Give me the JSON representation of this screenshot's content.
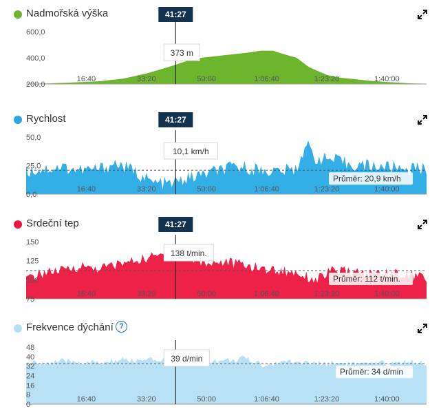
{
  "cursor_time": "41:27",
  "x_ticks": [
    "16:40",
    "33:20",
    "50:00",
    "1:06:40",
    "1:23:20",
    "1:40:00"
  ],
  "panels": [
    {
      "key": "elevation",
      "title": "Nadmořská výška",
      "color": "#6cb52d",
      "fill": "#6cb52d",
      "y_ticks": [
        "600,0",
        "400,0",
        "200,0"
      ],
      "tooltip": "373 m",
      "avg_label": "",
      "expand_icon": "expand-icon"
    },
    {
      "key": "speed",
      "title": "Rychlost",
      "color": "#29a8e0",
      "fill": "#33aee6",
      "y_ticks": [
        "50,0",
        "25,0",
        "0,0"
      ],
      "tooltip": "10,1 km/h",
      "avg_label": "Průměr: 20,9 km/h",
      "expand_icon": "expand-icon"
    },
    {
      "key": "heart",
      "title": "Srdeční tep",
      "color": "#e8173f",
      "fill": "#ee2148",
      "y_ticks": [
        "150",
        "125",
        "100",
        "75"
      ],
      "tooltip": "138 t/min.",
      "avg_label": "Průměr: 112 t/min.",
      "expand_icon": "expand-icon"
    },
    {
      "key": "breath",
      "title": "Frekvence dýchání",
      "color": "#b7dff3",
      "fill": "#b9e1f5",
      "y_ticks": [
        "48",
        "40",
        "32",
        "24",
        "16",
        "8",
        "0"
      ],
      "tooltip": "39 d/min",
      "avg_label": "Průměr: 34 d/min",
      "help_icon": "?",
      "expand_icon": "expand-icon"
    }
  ],
  "chart_data": [
    {
      "type": "area",
      "title": "Nadmořská výška",
      "unit": "m",
      "ylim": [
        200,
        600
      ],
      "x_axis": "elapsed time",
      "xlim_seconds": [
        0,
        6660
      ],
      "x_ticks": [
        "16:40",
        "33:20",
        "50:00",
        "1:06:40",
        "1:23:20",
        "1:40:00"
      ],
      "cursor": {
        "time": "41:27",
        "value": 373
      },
      "series": [
        {
          "x_seconds": [
            0,
            400,
            800,
            1200,
            1600,
            2000,
            2400,
            2700,
            2900,
            3100,
            3300,
            3500,
            3700,
            3900,
            4100,
            4200,
            4350,
            4500,
            4700,
            4900,
            5000,
            5200,
            5400,
            5600,
            5800,
            6000,
            6200,
            6400,
            6660
          ],
          "values": [
            200,
            205,
            212,
            220,
            240,
            280,
            335,
            380,
            400,
            410,
            420,
            430,
            440,
            455,
            455,
            440,
            420,
            400,
            330,
            290,
            270,
            250,
            240,
            230,
            222,
            215,
            210,
            205,
            202
          ]
        }
      ]
    },
    {
      "type": "area",
      "title": "Rychlost",
      "unit": "km/h",
      "ylim": [
        0,
        50
      ],
      "x_axis": "elapsed time",
      "xlim_seconds": [
        0,
        6660
      ],
      "x_ticks": [
        "16:40",
        "33:20",
        "50:00",
        "1:06:40",
        "1:23:20",
        "1:40:00"
      ],
      "cursor": {
        "time": "41:27",
        "value": 10.1
      },
      "average": 20.9,
      "series": [
        {
          "x_seconds": [
            0,
            300,
            600,
            900,
            1200,
            1500,
            1800,
            2100,
            2400,
            2700,
            3000,
            3300,
            3600,
            3900,
            4200,
            4500,
            4650,
            4800,
            5100,
            5400,
            5700,
            6000,
            6300,
            6660
          ],
          "values": [
            20,
            22,
            24,
            21,
            22,
            27,
            20,
            10,
            9,
            14,
            18,
            22,
            24,
            21,
            20,
            22,
            45,
            32,
            30,
            26,
            25,
            24,
            23,
            22
          ]
        }
      ]
    },
    {
      "type": "area",
      "title": "Srdeční tep",
      "unit": "t/min.",
      "ylim": [
        75,
        150
      ],
      "x_axis": "elapsed time",
      "xlim_seconds": [
        0,
        6660
      ],
      "x_ticks": [
        "16:40",
        "33:20",
        "50:00",
        "1:06:40",
        "1:23:20",
        "1:40:00"
      ],
      "cursor": {
        "time": "41:27",
        "value": 138
      },
      "average": 112,
      "series": [
        {
          "x_seconds": [
            0,
            300,
            600,
            900,
            1200,
            1500,
            1800,
            2100,
            2400,
            2700,
            3000,
            3300,
            3600,
            3900,
            4200,
            4500,
            4800,
            5100,
            5400,
            5700,
            6000,
            6300,
            6660
          ],
          "values": [
            100,
            110,
            112,
            118,
            115,
            120,
            125,
            130,
            135,
            128,
            122,
            124,
            120,
            115,
            112,
            110,
            100,
            112,
            110,
            108,
            110,
            106,
            104
          ]
        }
      ]
    },
    {
      "type": "area",
      "title": "Frekvence dýchání",
      "unit": "d/min",
      "ylim": [
        0,
        48
      ],
      "x_axis": "elapsed time",
      "xlim_seconds": [
        0,
        6660
      ],
      "x_ticks": [
        "16:40",
        "33:20",
        "50:00",
        "1:06:40",
        "1:23:20",
        "1:40:00"
      ],
      "cursor": {
        "time": "41:27",
        "value": 39
      },
      "average": 34,
      "series": [
        {
          "x_seconds": [
            0,
            400,
            800,
            1200,
            1600,
            2000,
            2400,
            2800,
            3200,
            3600,
            4000,
            4400,
            4800,
            5200,
            5600,
            6000,
            6400,
            6660
          ],
          "values": [
            34,
            35,
            36,
            34,
            37,
            36,
            38,
            39,
            36,
            38,
            33,
            36,
            34,
            35,
            33,
            34,
            36,
            35
          ]
        }
      ]
    }
  ]
}
